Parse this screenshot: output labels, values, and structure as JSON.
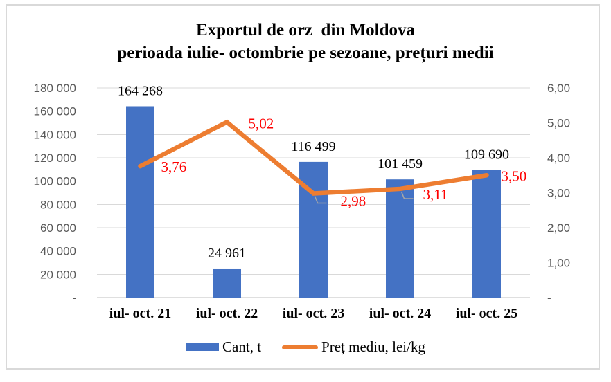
{
  "title": {
    "line1": "Exportul de orz  din Moldova",
    "line2": "perioada iulie- octombrie pe sezoane, prețuri medii"
  },
  "chart_data": {
    "type": "combo_bar_line",
    "categories": [
      "iul- oct. 21",
      "iul- oct. 22",
      "iul- oct. 23",
      "iul- oct. 24",
      "iul- oct. 25"
    ],
    "series": [
      {
        "name": "Cant, t",
        "type": "bar",
        "axis": "left",
        "color": "#4472C4",
        "values": [
          164268,
          24961,
          116499,
          101459,
          109690
        ],
        "data_labels": [
          "164 268",
          "24 961",
          "116 499",
          "101 459",
          "109 690"
        ],
        "label_color": "#000000"
      },
      {
        "name": "Preț mediu, lei/kg",
        "type": "line",
        "axis": "right",
        "color": "#ED7D31",
        "values": [
          3.76,
          5.02,
          2.98,
          3.11,
          3.5
        ],
        "data_labels": [
          "3,76",
          "5,02",
          "2,98",
          "3,11",
          "3,50"
        ],
        "label_color": "#FF0000",
        "label_leader_lines": [
          false,
          false,
          true,
          true,
          false
        ]
      }
    ],
    "left_axis": {
      "min": 0,
      "max": 180000,
      "step": 20000,
      "tick_labels_top_to_bottom": [
        "180 000",
        "160 000",
        "140 000",
        "120 000",
        "100 000",
        "80 000",
        "60 000",
        "40 000",
        "20 000",
        "-"
      ]
    },
    "right_axis": {
      "min": 0,
      "max": 6,
      "step": 1,
      "tick_labels_top_to_bottom": [
        "6,00",
        "5,00",
        "4,00",
        "3,00",
        "2,00",
        "1,00",
        "-"
      ]
    },
    "legend": {
      "position": "bottom",
      "items": [
        {
          "label": "Cant, t",
          "swatch": "bar",
          "color": "#4472C4"
        },
        {
          "label": "Preț mediu, lei/kg",
          "swatch": "line",
          "color": "#ED7D31"
        }
      ]
    },
    "gridlines": true,
    "colors": {
      "gridline": "#D9D9D9",
      "axis_line": "#BFBFBF",
      "tick_label": "#595959",
      "leader_line": "#A6A6A6",
      "title_text": "#000000"
    }
  }
}
